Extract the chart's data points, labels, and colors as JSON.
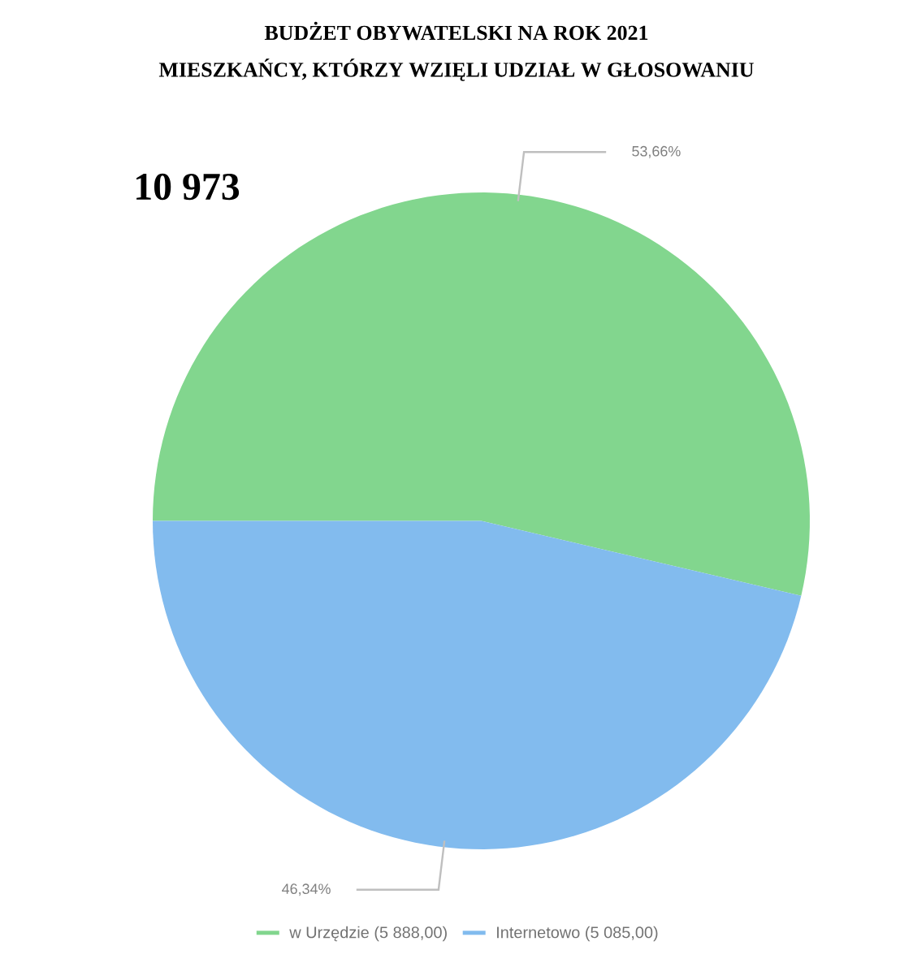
{
  "chart_data": {
    "type": "pie",
    "title": "BUDŻET OBYWATELSKI NA ROK 2021",
    "subtitle": "MIESZKAŃCY, KTÓRZY WZIĘLI UDZIAŁ W GŁOSOWANIU",
    "categories": [
      "w Urzędzie (5 888,00)",
      "Internetowo (5 085,00)"
    ],
    "values": [
      53.66,
      46.34
    ],
    "value_labels": [
      "53,66%",
      "46,34%"
    ],
    "colors": [
      "#82d68e",
      "#82bbee"
    ],
    "annotations": [
      "10 973"
    ],
    "legend": "bottom"
  }
}
